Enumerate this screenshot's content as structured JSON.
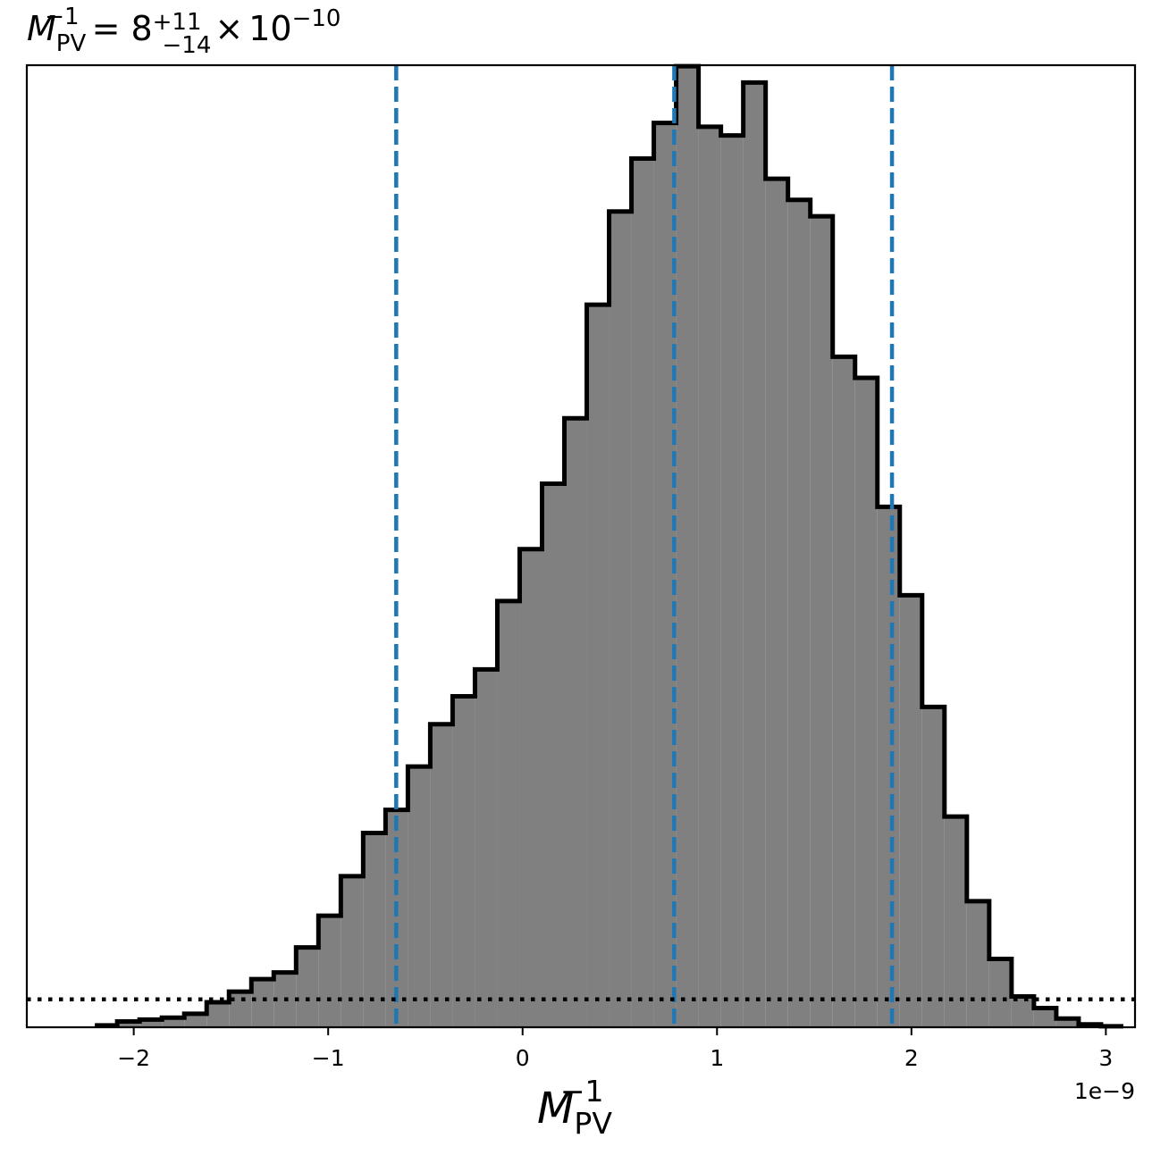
{
  "chart_data": {
    "type": "histogram",
    "title": {
      "symbol": "M",
      "sub": "PV",
      "sup": "−1",
      "equals": "=",
      "value": "8",
      "err_plus": "+11",
      "err_minus": "−14",
      "times": "×",
      "base": "10",
      "exp": "−10"
    },
    "xlabel": {
      "symbol": "M",
      "sub": "PV",
      "sup": "−1"
    },
    "x_offset_label": "1e−9",
    "xlim": [
      -2.55,
      3.15
    ],
    "ylim": [
      0,
      1000
    ],
    "x_ticks": [
      -2,
      -1,
      0,
      1,
      2,
      3
    ],
    "x_tick_labels": [
      "−2",
      "−1",
      "0",
      "1",
      "2",
      "3"
    ],
    "y_ticks_visible": false,
    "bin_edges": [
      -2.2,
      -2.085,
      -1.97,
      -1.855,
      -1.74,
      -1.625,
      -1.51,
      -1.395,
      -1.28,
      -1.165,
      -1.05,
      -0.935,
      -0.82,
      -0.705,
      -0.59,
      -0.475,
      -0.36,
      -0.245,
      -0.13,
      -0.015,
      0.1,
      0.215,
      0.33,
      0.445,
      0.56,
      0.675,
      0.79,
      0.905,
      1.02,
      1.135,
      1.25,
      1.365,
      1.48,
      1.595,
      1.71,
      1.825,
      1.94,
      2.055,
      2.17,
      2.285,
      2.4,
      2.515,
      2.63,
      2.745,
      2.86,
      2.975,
      3.09
    ],
    "counts": [
      2,
      6,
      8,
      10,
      14,
      26,
      37,
      50,
      57,
      83,
      116,
      157,
      202,
      226,
      271,
      315,
      344,
      372,
      443,
      497,
      565,
      633,
      751,
      848,
      903,
      940,
      999,
      936,
      927,
      982,
      882,
      860,
      843,
      697,
      675,
      541,
      449,
      333,
      219,
      131,
      71,
      32,
      20,
      9,
      3,
      1
    ],
    "histogram_style": {
      "fill": "#808080",
      "edge": "#000000"
    },
    "vlines": [
      {
        "x": -0.65,
        "style": "dashed",
        "color": "#1f77b4"
      },
      {
        "x": 0.78,
        "style": "dashed",
        "color": "#1f77b4"
      },
      {
        "x": 1.9,
        "style": "dashed",
        "color": "#1f77b4"
      }
    ],
    "hline": {
      "y": 29,
      "style": "dotted",
      "color": "#000000"
    },
    "grid": false
  }
}
